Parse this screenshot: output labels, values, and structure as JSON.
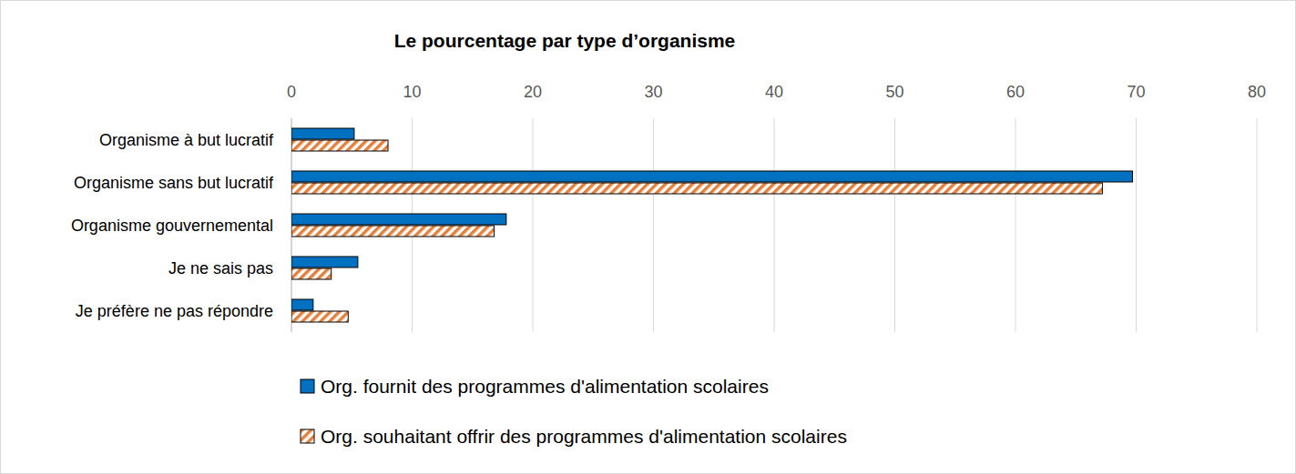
{
  "chart_data": {
    "type": "bar",
    "orientation": "horizontal",
    "title": "Le pourcentage par type d’organisme",
    "categories": [
      "Organisme à but lucratif",
      "Organisme sans but lucratif",
      "Organisme gouvernemental",
      "Je ne sais pas",
      "Je préfère ne pas répondre"
    ],
    "series": [
      {
        "name": "Org. fournit des programmes d'alimentation scolaires",
        "color": "#0070c0",
        "values": [
          5.2,
          69.7,
          17.8,
          5.5,
          1.8
        ]
      },
      {
        "name": "Org. souhaitant offrir des programmes d'alimentation scolaires",
        "color": "#e5803a",
        "values": [
          8.0,
          67.2,
          16.8,
          3.3,
          4.7
        ]
      }
    ],
    "xlim": [
      0,
      80
    ],
    "xticks": [
      0,
      10,
      20,
      30,
      40,
      50,
      60,
      70,
      80
    ],
    "grid": true,
    "legend": "bottom"
  }
}
